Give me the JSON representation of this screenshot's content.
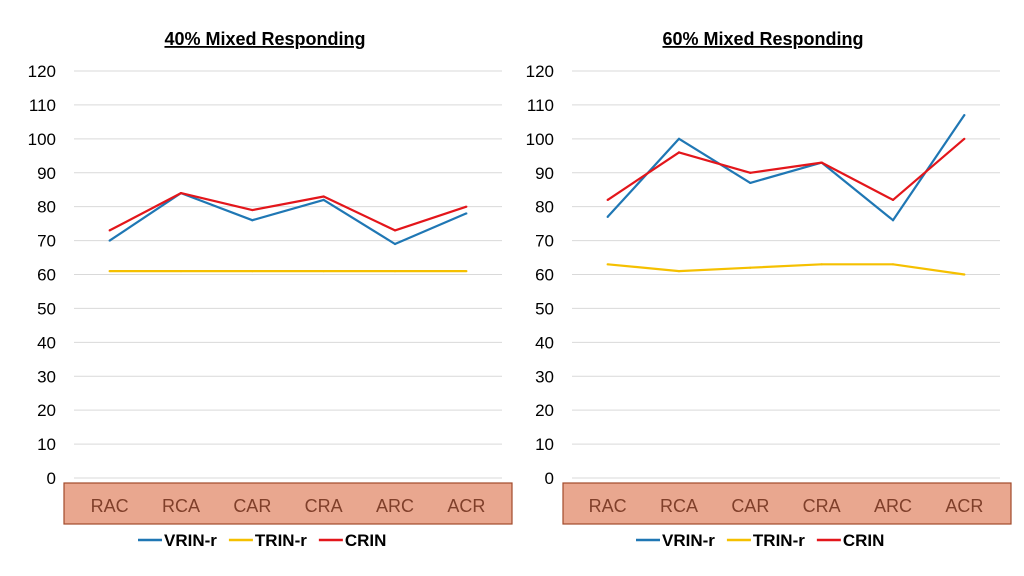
{
  "colors": {
    "vrin": "#1f77b4",
    "trin": "#f5c000",
    "crin": "#e3161b",
    "grid": "#d9d9d9",
    "category_box_fill": "#e9a78f",
    "category_box_border": "#a24a2b"
  },
  "chart_data": [
    {
      "type": "line",
      "title": "40% Mixed Responding",
      "categories": [
        "RAC",
        "RCA",
        "CAR",
        "CRA",
        "ARC",
        "ACR"
      ],
      "ylim": [
        0,
        120
      ],
      "yticks": [
        "120",
        "110",
        "100",
        "90",
        "80",
        "70",
        "60",
        "50",
        "40",
        "30",
        "20",
        "10",
        "0"
      ],
      "grid": true,
      "legend_position": "bottom",
      "series": [
        {
          "name": "VRIN-r",
          "color": "#1f77b4",
          "values": [
            70,
            84,
            76,
            82,
            69,
            78
          ]
        },
        {
          "name": "TRIN-r",
          "color": "#f5c000",
          "values": [
            61,
            61,
            61,
            61,
            61,
            61
          ]
        },
        {
          "name": "CRIN",
          "color": "#e3161b",
          "values": [
            73,
            84,
            79,
            83,
            73,
            80
          ]
        }
      ]
    },
    {
      "type": "line",
      "title": "60% Mixed Responding",
      "categories": [
        "RAC",
        "RCA",
        "CAR",
        "CRA",
        "ARC",
        "ACR"
      ],
      "ylim": [
        0,
        120
      ],
      "yticks": [
        "120",
        "110",
        "100",
        "90",
        "80",
        "70",
        "60",
        "50",
        "40",
        "30",
        "20",
        "10",
        "0"
      ],
      "grid": true,
      "legend_position": "bottom",
      "series": [
        {
          "name": "VRIN-r",
          "color": "#1f77b4",
          "values": [
            77,
            100,
            87,
            93,
            76,
            107
          ]
        },
        {
          "name": "TRIN-r",
          "color": "#f5c000",
          "values": [
            63,
            61,
            62,
            63,
            63,
            60
          ]
        },
        {
          "name": "CRIN",
          "color": "#e3161b",
          "values": [
            82,
            96,
            90,
            93,
            82,
            100
          ]
        }
      ]
    }
  ]
}
